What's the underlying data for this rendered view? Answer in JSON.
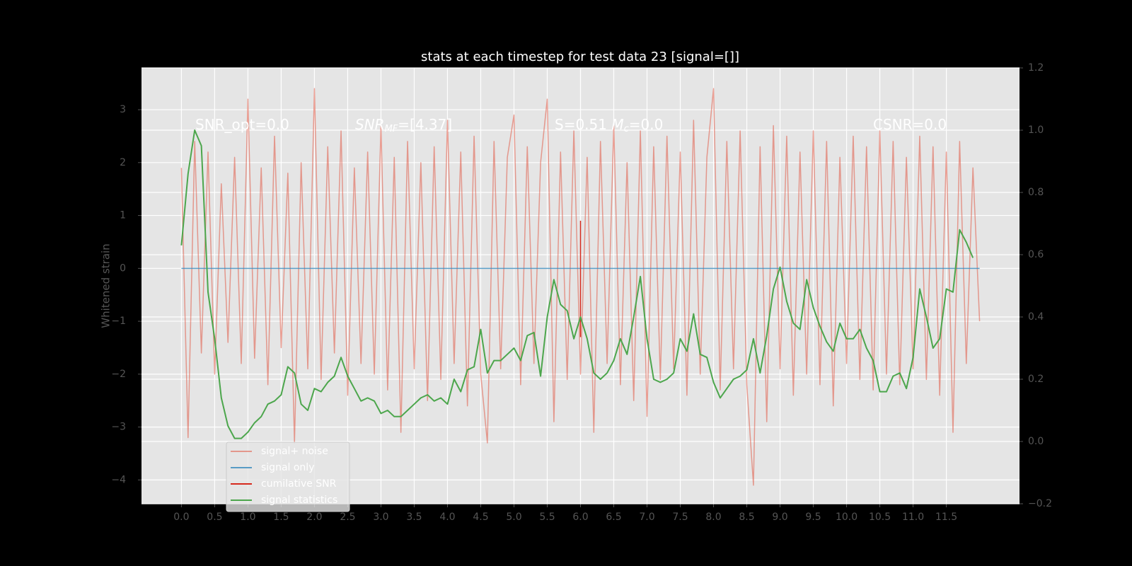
{
  "chart_data": {
    "type": "line",
    "title": "stats at each timestep for test data 23 [signal=[]]",
    "ylabel": "Whitened strain",
    "annotations": [
      [
        "SNR_opt=0.0"
      ],
      [
        "SNR",
        "MF",
        "=[4.37]"
      ],
      [
        "S=0.51  ",
        "M",
        "c",
        "=0.0"
      ],
      [
        "CSNR=0.0"
      ]
    ],
    "xlim": [
      -0.6,
      12.6
    ],
    "xticks": [
      {
        "value": 0,
        "label": "0.0"
      },
      0.5,
      {
        "value": 1,
        "label": "1.0"
      },
      1.5,
      {
        "value": 2,
        "label": "2.0"
      },
      2.5,
      {
        "value": 3,
        "label": "3.0"
      },
      3.5,
      {
        "value": 4,
        "label": "4.0"
      },
      4.5,
      {
        "value": 5,
        "label": "5.0"
      },
      5.5,
      {
        "value": 6,
        "label": "6.0"
      },
      6.5,
      {
        "value": 7,
        "label": "7.0"
      },
      7.5,
      {
        "value": 8,
        "label": "8.0"
      },
      8.5,
      {
        "value": 9,
        "label": "9.0"
      },
      9.5,
      {
        "value": 10,
        "label": "10.0"
      },
      10.5,
      {
        "value": 11,
        "label": "11.0"
      },
      11.5
    ],
    "ylim": [
      -4.45,
      3.79
    ],
    "yticks": [
      {
        "value": -4,
        "label": "−4"
      },
      {
        "value": -3,
        "label": "−3"
      },
      {
        "value": -2,
        "label": "−2"
      },
      {
        "value": -1,
        "label": "−1"
      },
      0,
      1,
      2,
      3
    ],
    "y2lim": [
      -0.2,
      1.2
    ],
    "y2ticks": [
      {
        "value": -0.2,
        "label": "−0.2"
      },
      {
        "value": 0,
        "label": "0.0"
      },
      0.2,
      0.4,
      0.6,
      0.8,
      {
        "value": 1,
        "label": "1.0"
      },
      1.2
    ],
    "grid": true,
    "legend": "lower left",
    "series": [
      {
        "name": "signal+ noise",
        "color": "#E24A33",
        "alpha": 0.5,
        "x": [
          0,
          0.1,
          0.2,
          0.3,
          0.4,
          0.5,
          0.6,
          0.7,
          0.8,
          0.9,
          1,
          1.1,
          1.2,
          1.3,
          1.4,
          1.5,
          1.6,
          1.7,
          1.8,
          1.9,
          2,
          2.1,
          2.2,
          2.3,
          2.4,
          2.5,
          2.6,
          2.7,
          2.8,
          2.9,
          3,
          3.1,
          3.2,
          3.3,
          3.4,
          3.5,
          3.6,
          3.7,
          3.8,
          3.9,
          4,
          4.1,
          4.2,
          4.3,
          4.4,
          4.5,
          4.6,
          4.7,
          4.8,
          4.9,
          5,
          5.1,
          5.2,
          5.3,
          5.4,
          5.5,
          5.6,
          5.7,
          5.8,
          5.9,
          6,
          6.1,
          6.2,
          6.3,
          6.4,
          6.5,
          6.6,
          6.7,
          6.8,
          6.9,
          7,
          7.1,
          7.2,
          7.3,
          7.4,
          7.5,
          7.6,
          7.7,
          7.8,
          7.9,
          8,
          8.1,
          8.2,
          8.3,
          8.4,
          8.5,
          8.6,
          8.7,
          8.8,
          8.9,
          9,
          9.1,
          9.2,
          9.3,
          9.4,
          9.5,
          9.6,
          9.7,
          9.8,
          9.9,
          10,
          10.1,
          10.2,
          10.3,
          10.4,
          10.5,
          10.6,
          10.7,
          10.8,
          10.9,
          11,
          11.1,
          11.2,
          11.3,
          11.4,
          11.5,
          11.6,
          11.7,
          11.8,
          11.9,
          12
        ],
        "values": [
          1.9,
          -3.2,
          2.4,
          -1.6,
          2.2,
          -2.0,
          1.6,
          -1.4,
          2.1,
          -1.8,
          3.2,
          -1.7,
          1.9,
          -2.2,
          2.5,
          -1.5,
          1.8,
          -3.3,
          2.0,
          -1.9,
          3.4,
          -2.1,
          2.3,
          -1.6,
          2.6,
          -2.4,
          1.9,
          -1.8,
          2.2,
          -2.0,
          2.7,
          -2.3,
          2.1,
          -3.1,
          2.4,
          -1.9,
          2.0,
          -2.5,
          2.3,
          -2.1,
          2.8,
          -1.8,
          2.2,
          -2.6,
          2.5,
          -2.0,
          -3.3,
          2.4,
          -1.9,
          2.1,
          2.9,
          -2.2,
          2.3,
          -1.8,
          2.0,
          3.2,
          -2.9,
          2.2,
          -2.1,
          2.6,
          -2.0,
          2.1,
          -3.1,
          2.4,
          -1.8,
          2.7,
          -2.2,
          2.0,
          -2.5,
          2.6,
          -2.8,
          2.3,
          -2.1,
          2.5,
          -1.9,
          2.2,
          -2.4,
          2.8,
          -2.0,
          2.1,
          3.4,
          -2.3,
          2.4,
          -1.9,
          2.6,
          -2.2,
          -4.1,
          2.3,
          -2.9,
          2.7,
          -1.9,
          2.5,
          -2.4,
          2.2,
          -2.0,
          2.6,
          -2.2,
          2.4,
          -2.6,
          2.1,
          -1.8,
          2.5,
          -2.1,
          2.3,
          -2.3,
          2.6,
          -2.0,
          2.4,
          -2.2,
          2.1,
          -1.9,
          2.5,
          -2.1,
          2.3,
          -2.4,
          2.2,
          -3.1,
          2.4,
          -1.8,
          1.9,
          -1.0
        ]
      },
      {
        "name": "signal only",
        "color": "#348ABD",
        "alpha": 0.8,
        "x": [
          0,
          12
        ],
        "values": [
          0,
          0
        ]
      },
      {
        "name": "cumilative SNR",
        "color": "#d62a1e",
        "alpha": 1,
        "x": [
          6,
          6
        ],
        "values": [
          0.9,
          -1.3
        ]
      },
      {
        "name": "signal statistics",
        "color": "#4ca64c",
        "alpha": 1,
        "axis": "y2",
        "x": [
          0,
          0.1,
          0.2,
          0.3,
          0.4,
          0.5,
          0.6,
          0.7,
          0.8,
          0.9,
          1,
          1.1,
          1.2,
          1.3,
          1.4,
          1.5,
          1.6,
          1.7,
          1.8,
          1.9,
          2,
          2.1,
          2.2,
          2.3,
          2.4,
          2.5,
          2.6,
          2.7,
          2.8,
          2.9,
          3,
          3.1,
          3.2,
          3.3,
          3.4,
          3.5,
          3.6,
          3.7,
          3.8,
          3.9,
          4,
          4.1,
          4.2,
          4.3,
          4.4,
          4.5,
          4.6,
          4.7,
          4.8,
          4.9,
          5,
          5.1,
          5.2,
          5.3,
          5.4,
          5.5,
          5.6,
          5.7,
          5.8,
          5.9,
          6,
          6.1,
          6.2,
          6.3,
          6.4,
          6.5,
          6.6,
          6.7,
          6.8,
          6.9,
          7,
          7.1,
          7.2,
          7.3,
          7.4,
          7.5,
          7.6,
          7.7,
          7.8,
          7.9,
          8,
          8.1,
          8.2,
          8.3,
          8.4,
          8.5,
          8.6,
          8.7,
          8.8,
          8.9,
          9,
          9.1,
          9.2,
          9.3,
          9.4,
          9.5,
          9.6,
          9.7,
          9.8,
          9.9,
          10,
          10.1,
          10.2,
          10.3,
          10.4,
          10.5,
          10.6,
          10.7,
          10.8,
          10.9,
          11,
          11.1,
          11.2,
          11.3,
          11.4,
          11.5,
          11.6,
          11.7,
          11.8,
          11.9
        ],
        "values": [
          0.63,
          0.86,
          1.0,
          0.95,
          0.48,
          0.33,
          0.14,
          0.05,
          0.01,
          0.01,
          0.03,
          0.06,
          0.08,
          0.12,
          0.13,
          0.15,
          0.24,
          0.22,
          0.12,
          0.1,
          0.17,
          0.16,
          0.19,
          0.21,
          0.27,
          0.21,
          0.17,
          0.13,
          0.14,
          0.13,
          0.09,
          0.1,
          0.08,
          0.08,
          0.1,
          0.12,
          0.14,
          0.15,
          0.13,
          0.14,
          0.12,
          0.2,
          0.16,
          0.23,
          0.24,
          0.36,
          0.22,
          0.26,
          0.26,
          0.28,
          0.3,
          0.26,
          0.34,
          0.35,
          0.21,
          0.4,
          0.52,
          0.44,
          0.42,
          0.33,
          0.4,
          0.33,
          0.22,
          0.2,
          0.22,
          0.26,
          0.33,
          0.28,
          0.4,
          0.53,
          0.33,
          0.2,
          0.19,
          0.2,
          0.22,
          0.33,
          0.29,
          0.41,
          0.28,
          0.27,
          0.19,
          0.14,
          0.17,
          0.2,
          0.21,
          0.23,
          0.33,
          0.22,
          0.34,
          0.49,
          0.56,
          0.45,
          0.38,
          0.36,
          0.52,
          0.43,
          0.37,
          0.32,
          0.29,
          0.38,
          0.33,
          0.33,
          0.36,
          0.3,
          0.26,
          0.16,
          0.16,
          0.21,
          0.22,
          0.17,
          0.27,
          0.49,
          0.4,
          0.3,
          0.33,
          0.49,
          0.48,
          0.68,
          0.64,
          0.59
        ]
      }
    ]
  }
}
